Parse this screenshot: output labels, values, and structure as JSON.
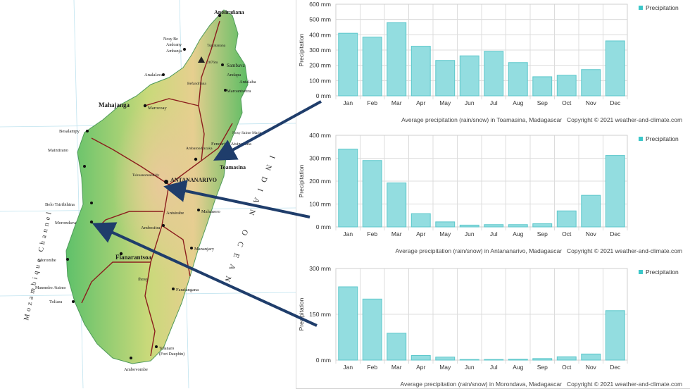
{
  "map": {
    "labels": {
      "antsiranana": "Antsirañana",
      "nosy_be": "Nosy Be",
      "andoany": "Andoany",
      "ambanja": "Ambanja",
      "tsaratanana": "Tsaratanana",
      "peak": "2876m",
      "sambava": "Sambava",
      "analalava": "Analalava",
      "andapa": "Andapa",
      "antalaha": "Antalaha",
      "befandriana": "Befandriana",
      "maroantsetra": "Maroantsetra",
      "mahajanga": "Mahajanga",
      "marovoay": "Marovoay",
      "besalampy": "Besalampy",
      "nosy_sainte_marie": "Nosy Sainte Marie",
      "fenoarivo": "Fenoarivo Atsinanana",
      "maintirano": "Maintirano",
      "ambatondrazaka": "Ambatondrazaka",
      "toamasina": "Toamasina",
      "antananarivo": "ANTANANARIVO",
      "tsiroanomandidy": "Tsiroanomandidy",
      "belo": "Belo Tsiribihina",
      "antsirabe": "Antsirabe",
      "mahanoro": "Mahanoro",
      "morondava": "Morondava",
      "ambositra": "Ambositra",
      "fianarantsoa": "Fianarantsoa",
      "mananjary": "Mananjary",
      "morombe": "Morombe",
      "farafangana": "Farafangana",
      "manombo": "Manombo Atsimo",
      "toliara": "Toliara",
      "ihosy": "Ihosy",
      "tolanaro": "Tolanaro",
      "fort_dauphin": "(Fort Dauphin)",
      "ambovombe": "Ambovombe",
      "channel": "Mozambique Channel",
      "ocean": "INDIAN OCEAN"
    }
  },
  "colors": {
    "bar_fill": "#93dde0",
    "bar_stroke": "#5cc7cb",
    "legend_swatch": "#3cc7c9",
    "arrow": "#1f3d6b"
  },
  "chart_data": [
    {
      "type": "bar",
      "categories": [
        "Jan",
        "Feb",
        "Mar",
        "Apr",
        "May",
        "Jun",
        "Jul",
        "Aug",
        "Sep",
        "Oct",
        "Nov",
        "Dec"
      ],
      "series": [
        {
          "name": "Precipitation",
          "values": [
            410,
            385,
            480,
            325,
            232,
            262,
            292,
            218,
            125,
            135,
            172,
            360
          ]
        }
      ],
      "ylabel": "Precipitation",
      "ylim": [
        0,
        600
      ],
      "yticks": [
        "0 mm",
        "100 mm",
        "200 mm",
        "300 mm",
        "400 mm",
        "500 mm",
        "600 mm"
      ],
      "caption": "Average precipitation (rain/snow) in Toamasina, Madagascar",
      "copyright": "Copyright © 2021  weather-and-climate.com",
      "legend": "top-right",
      "grid": true
    },
    {
      "type": "bar",
      "categories": [
        "Jan",
        "Feb",
        "Mar",
        "Apr",
        "May",
        "Jun",
        "Jul",
        "Aug",
        "Sep",
        "Oct",
        "Nov",
        "Dec"
      ],
      "series": [
        {
          "name": "Precipitation",
          "values": [
            340,
            290,
            192,
            58,
            22,
            8,
            10,
            10,
            14,
            70,
            138,
            312
          ]
        }
      ],
      "ylabel": "Precipitation",
      "ylim": [
        0,
        400
      ],
      "yticks": [
        "0 mm",
        "100 mm",
        "200 mm",
        "300 mm",
        "400 mm"
      ],
      "caption": "Average precipitation (rain/snow) in Antananarivo, Madagascar",
      "copyright": "Copyright © 2021  weather-and-climate.com",
      "legend": "top-right",
      "grid": true
    },
    {
      "type": "bar",
      "categories": [
        "Jan",
        "Feb",
        "Mar",
        "Apr",
        "May",
        "Jun",
        "Jul",
        "Aug",
        "Sep",
        "Oct",
        "Nov",
        "Dec"
      ],
      "series": [
        {
          "name": "Precipitation",
          "values": [
            240,
            200,
            88,
            15,
            10,
            2,
            2,
            3,
            5,
            11,
            20,
            162
          ]
        }
      ],
      "ylabel": "Precipitation",
      "ylim": [
        0,
        300
      ],
      "yticks": [
        "0 mm",
        "150 mm",
        "300 mm"
      ],
      "caption": "Average precipitation (rain/snow) in Morondava, Madagascar",
      "copyright": "Copyright © 2021  weather-and-climate.com",
      "legend": "top-right",
      "grid": true
    }
  ]
}
